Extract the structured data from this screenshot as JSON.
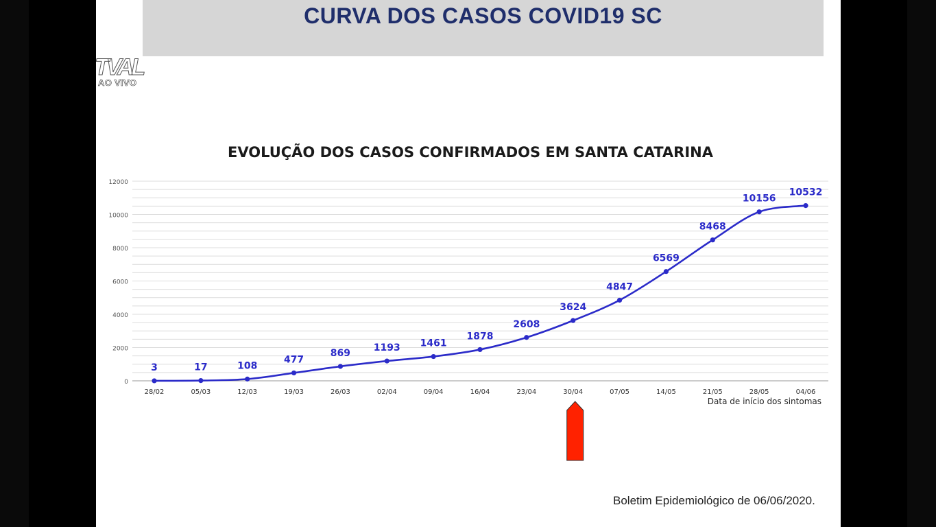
{
  "slide": {
    "title": "CURVA DOS CASOS COVID19 SC",
    "footer": "Boletim Epidemiológico de 06/06/2020."
  },
  "logo": {
    "text": "TVAL",
    "live_label": "AO VIVO"
  },
  "chart_data": {
    "type": "line",
    "title": "EVOLUÇÃO DOS CASOS CONFIRMADOS EM SANTA CATARINA",
    "xlabel": "Data de início dos sintomas",
    "ylabel": "",
    "ylim": [
      0,
      12000
    ],
    "yticks": [
      0,
      2000,
      4000,
      6000,
      8000,
      10000,
      12000
    ],
    "grid": true,
    "categories": [
      "28/02",
      "05/03",
      "12/03",
      "19/03",
      "26/03",
      "02/04",
      "09/04",
      "16/04",
      "23/04",
      "30/04",
      "07/05",
      "14/05",
      "21/05",
      "28/05",
      "04/06"
    ],
    "series": [
      {
        "values": [
          3,
          17,
          108,
          477,
          869,
          1193,
          1461,
          1878,
          2608,
          3624,
          4847,
          6569,
          8468,
          10156,
          10532
        ],
        "color": "#2b2bc9"
      }
    ],
    "annotation": {
      "type": "arrow-up",
      "at": "30/04",
      "color": "#ff2200"
    }
  }
}
